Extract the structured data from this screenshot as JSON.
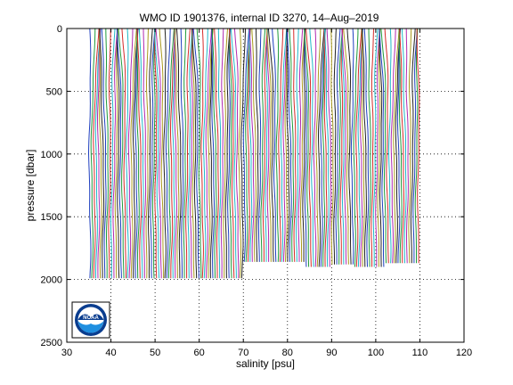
{
  "chart_data": {
    "type": "line",
    "title": "WMO ID 1901376, internal ID 3270, 14–Aug–2019",
    "xlabel": "salinity [psu]",
    "ylabel": "pressure [dbar]",
    "xlim": [
      30,
      120
    ],
    "ylim": [
      2500,
      0
    ],
    "y_axis_reversed": true,
    "xticks": [
      "30",
      "40",
      "50",
      "60",
      "70",
      "80",
      "90",
      "100",
      "110",
      "120"
    ],
    "yticks": [
      "0",
      "500",
      "1000",
      "1500",
      "2000",
      "2500"
    ],
    "grid": "dotted",
    "logo": {
      "label": "NOAA",
      "position": "bottom-left",
      "colors": [
        "#0a3d8f",
        "#1f8fe0",
        "#ffffff"
      ]
    },
    "series_colors": [
      "#1f3fbf",
      "#1f9a3a",
      "#d42a2a",
      "#1fb8c8",
      "#b02ab0",
      "#aa9a1f",
      "#222222"
    ],
    "profiles": {
      "x_start": 35.2,
      "x_step": 0.5,
      "x_end": 110,
      "pressure_top": 0,
      "pressure_bottom_default": 1990,
      "bottom_segments": [
        {
          "from": 35,
          "to": 70,
          "pressure_bottom": 1990
        },
        {
          "from": 70,
          "to": 84,
          "pressure_bottom": 1860
        },
        {
          "from": 84,
          "to": 90,
          "pressure_bottom": 1900
        },
        {
          "from": 90,
          "to": 95,
          "pressure_bottom": 1880
        },
        {
          "from": 95,
          "to": 102,
          "pressure_bottom": 1900
        },
        {
          "from": 102,
          "to": 110,
          "pressure_bottom": 1870
        }
      ]
    }
  }
}
